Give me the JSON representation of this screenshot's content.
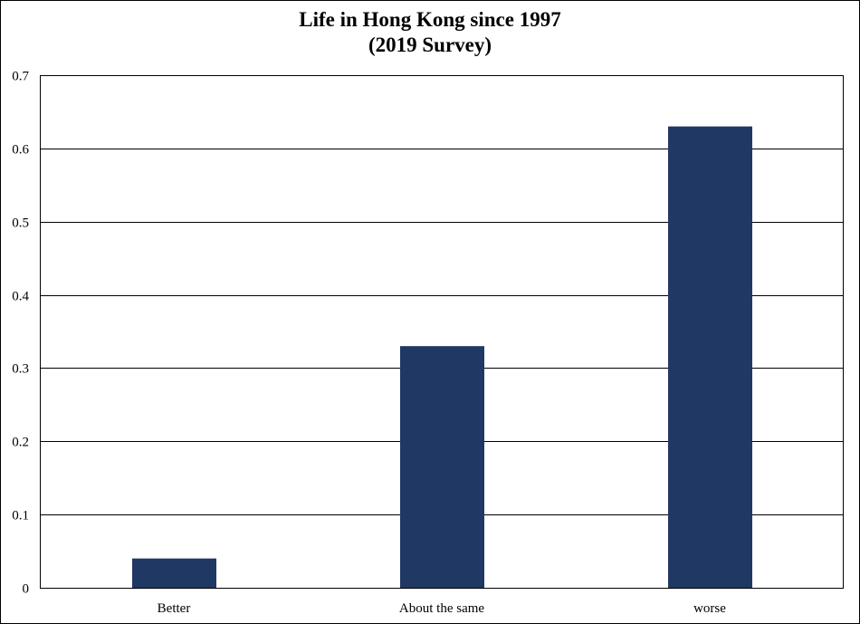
{
  "chart_data": {
    "type": "bar",
    "title_line1": "Life in Hong Kong since 1997",
    "title_line2": "(2019 Survey)",
    "categories": [
      "Better",
      "About the same",
      "worse"
    ],
    "values": [
      0.04,
      0.33,
      0.63
    ],
    "y_ticks": [
      "0",
      "0.1",
      "0.2",
      "0.3",
      "0.4",
      "0.5",
      "0.6",
      "0.7"
    ],
    "ylim": [
      0,
      0.7
    ],
    "xlabel": "",
    "ylabel": "",
    "grid": true,
    "legend": "none",
    "bar_color": "#203864"
  }
}
